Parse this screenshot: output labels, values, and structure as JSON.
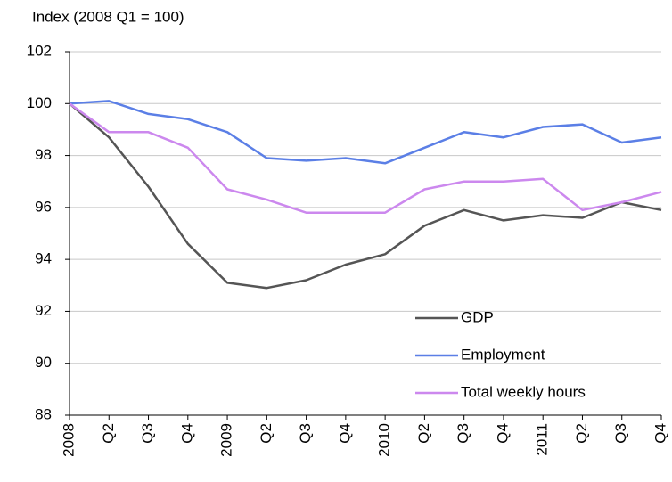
{
  "chart_data": {
    "type": "line",
    "y_label": "Index (2008  Q1 = 100)",
    "categories": [
      "2008",
      "Q2",
      "Q3",
      "Q4",
      "2009",
      "Q2",
      "Q3",
      "Q4",
      "2010",
      "Q2",
      "Q3",
      "Q4",
      "2011",
      "Q2",
      "Q3",
      "Q4"
    ],
    "series": [
      {
        "name": "GDP",
        "color": "#555555",
        "values": [
          100,
          98.7,
          96.8,
          94.6,
          93.1,
          92.9,
          93.2,
          93.8,
          94.2,
          95.3,
          95.9,
          95.5,
          95.7,
          95.6,
          96.2,
          95.9
        ]
      },
      {
        "name": "Employment",
        "color": "#5b7fe6",
        "values": [
          100,
          100.1,
          99.6,
          99.4,
          98.9,
          97.9,
          97.8,
          97.9,
          97.7,
          98.3,
          98.9,
          98.7,
          99.1,
          99.2,
          98.5,
          98.7
        ]
      },
      {
        "name": "Total weekly  hours",
        "color": "#cc88ee",
        "values": [
          100,
          98.9,
          98.9,
          98.3,
          96.7,
          96.3,
          95.8,
          95.8,
          95.8,
          96.7,
          97.0,
          97.0,
          97.1,
          95.9,
          96.2,
          96.6
        ]
      }
    ],
    "ylim": [
      88,
      102
    ],
    "yticks": [
      88,
      90,
      92,
      94,
      96,
      98,
      100,
      102
    ],
    "grid": true,
    "legend": "lower right"
  }
}
